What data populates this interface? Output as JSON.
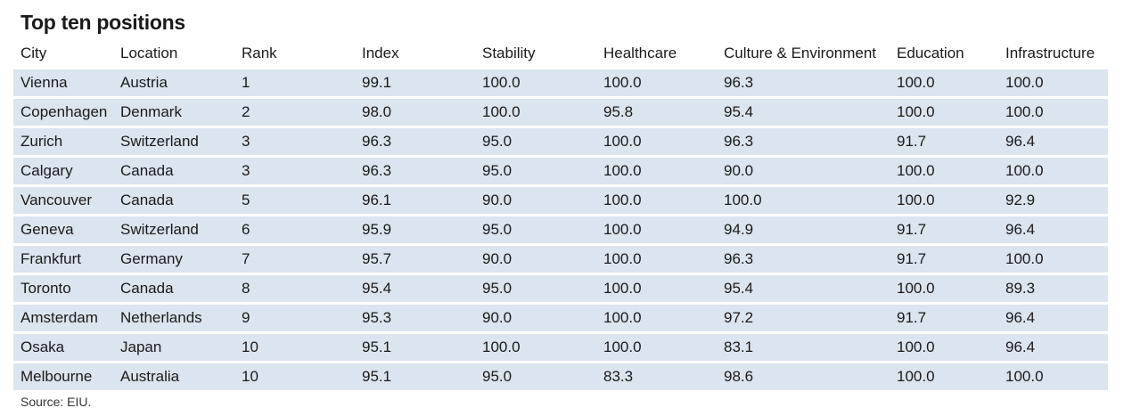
{
  "title": "Top ten positions",
  "columns": [
    "City",
    "Location",
    "Rank",
    "Index",
    "Stability",
    "Healthcare",
    "Culture & Environment",
    "Education",
    "Infrastructure"
  ],
  "rows": [
    [
      "Vienna",
      "Austria",
      "1",
      "99.1",
      "100.0",
      "100.0",
      "96.3",
      "100.0",
      "100.0"
    ],
    [
      "Copenhagen",
      "Denmark",
      "2",
      "98.0",
      "100.0",
      "95.8",
      "95.4",
      "100.0",
      "100.0"
    ],
    [
      "Zurich",
      "Switzerland",
      "3",
      "96.3",
      "95.0",
      "100.0",
      "96.3",
      "91.7",
      "96.4"
    ],
    [
      "Calgary",
      "Canada",
      "3",
      "96.3",
      "95.0",
      "100.0",
      "90.0",
      "100.0",
      "100.0"
    ],
    [
      "Vancouver",
      "Canada",
      "5",
      "96.1",
      "90.0",
      "100.0",
      "100.0",
      "100.0",
      "92.9"
    ],
    [
      "Geneva",
      "Switzerland",
      "6",
      "95.9",
      "95.0",
      "100.0",
      "94.9",
      "91.7",
      "96.4"
    ],
    [
      "Frankfurt",
      "Germany",
      "7",
      "95.7",
      "90.0",
      "100.0",
      "96.3",
      "91.7",
      "100.0"
    ],
    [
      "Toronto",
      "Canada",
      "8",
      "95.4",
      "95.0",
      "100.0",
      "95.4",
      "100.0",
      "89.3"
    ],
    [
      "Amsterdam",
      "Netherlands",
      "9",
      "95.3",
      "90.0",
      "100.0",
      "97.2",
      "91.7",
      "96.4"
    ],
    [
      "Osaka",
      "Japan",
      "10",
      "95.1",
      "100.0",
      "100.0",
      "83.1",
      "100.0",
      "96.4"
    ],
    [
      "Melbourne",
      "Australia",
      "10",
      "95.1",
      "95.0",
      "83.3",
      "98.6",
      "100.0",
      "100.0"
    ]
  ],
  "source": "Source: EIU.",
  "colors": {
    "row_background": "#dbe5ef",
    "text": "#1a1a1a"
  }
}
